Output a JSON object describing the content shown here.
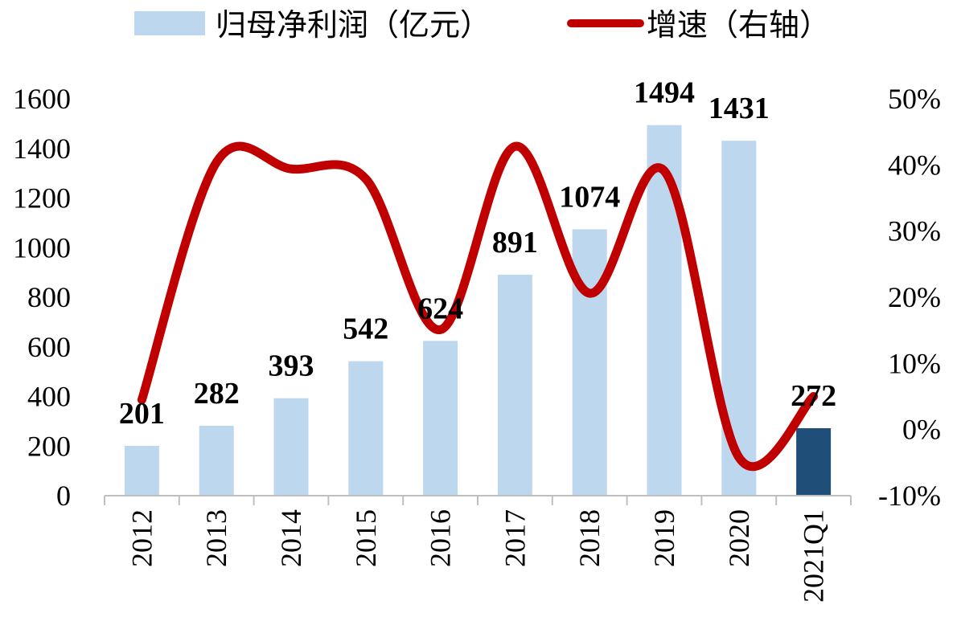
{
  "chart_data": {
    "type": "bar",
    "categories": [
      "2012",
      "2013",
      "2014",
      "2015",
      "2016",
      "2017",
      "2018",
      "2019",
      "2020",
      "2021Q1"
    ],
    "series": [
      {
        "name": "归母净利润（亿元）",
        "type": "bar",
        "axis": "left",
        "values": [
          201,
          282,
          393,
          542,
          624,
          891,
          1074,
          1494,
          1431,
          272
        ],
        "labels": [
          "201",
          "282",
          "393",
          "542",
          "624",
          "891",
          "1074",
          "1494",
          "1431",
          "272"
        ],
        "color": "#BDD7EE",
        "highlight_color": "#1F4E79",
        "highlight_index": 9
      },
      {
        "name": "增速（右轴）",
        "type": "line",
        "axis": "right",
        "values": [
          4.5,
          40.4,
          39.4,
          37.9,
          15.1,
          42.8,
          20.6,
          39.1,
          -4.2,
          5.0
        ],
        "color": "#C00000"
      }
    ],
    "y_left": {
      "min": 0,
      "max": 1600,
      "step": 200,
      "ticks": [
        "0",
        "200",
        "400",
        "600",
        "800",
        "1000",
        "1200",
        "1400",
        "1600"
      ]
    },
    "y_right": {
      "min": -10,
      "max": 50,
      "step": 10,
      "ticks": [
        "-10%",
        "0%",
        "10%",
        "20%",
        "30%",
        "40%",
        "50%"
      ]
    },
    "grid": false,
    "legend_position": "top"
  }
}
